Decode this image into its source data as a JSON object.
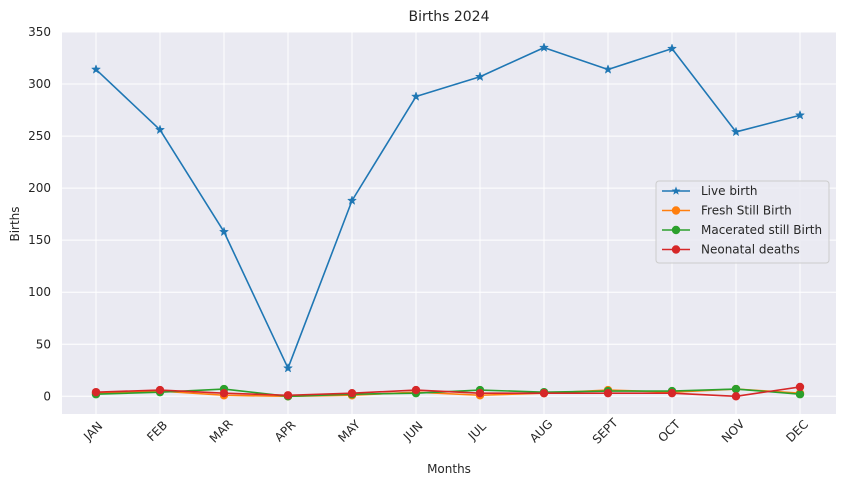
{
  "chart_data": {
    "type": "line",
    "title": "Births 2024",
    "xlabel": "Months",
    "ylabel": "Births",
    "categories": [
      "JAN",
      "FEB",
      "MAR",
      "APR",
      "MAY",
      "JUN",
      "JUL",
      "AUG",
      "SEPT",
      "OCT",
      "NOV",
      "DEC"
    ],
    "ylim": [
      -17,
      350
    ],
    "yticks": [
      0,
      50,
      100,
      150,
      200,
      250,
      300,
      350
    ],
    "grid": true,
    "legend_position": "right",
    "series": [
      {
        "name": "Live birth",
        "color": "#1f77b4",
        "marker": "star",
        "values": [
          314,
          256,
          158,
          27,
          188,
          288,
          307,
          335,
          314,
          334,
          254,
          270
        ]
      },
      {
        "name": "Fresh Still Birth",
        "color": "#ff7f0e",
        "marker": "circle",
        "values": [
          3,
          5,
          1,
          0,
          1,
          4,
          1,
          3,
          6,
          4,
          7,
          3
        ]
      },
      {
        "name": "Macerated still Birth",
        "color": "#2ca02c",
        "marker": "circle",
        "values": [
          2,
          4,
          7,
          0,
          2,
          3,
          6,
          4,
          5,
          5,
          7,
          2
        ]
      },
      {
        "name": "Neonatal deaths",
        "color": "#d62728",
        "marker": "circle",
        "values": [
          4,
          6,
          3,
          1,
          3,
          6,
          3,
          3,
          3,
          3,
          0,
          9
        ]
      }
    ]
  }
}
